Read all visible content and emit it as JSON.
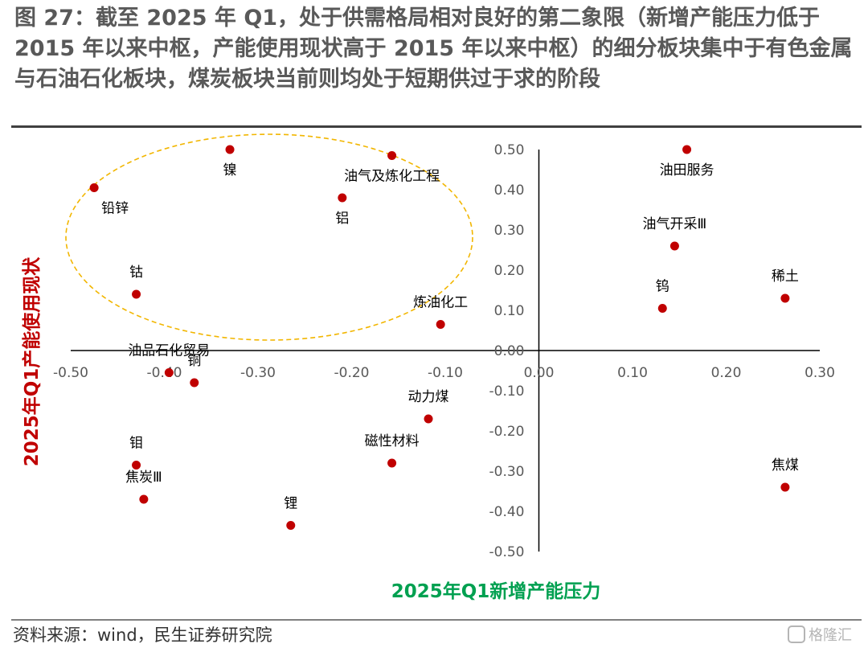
{
  "title": "图 27：截至 2025 年 Q1，处于供需格局相对良好的第二象限（新增产能压力低于 2015 年以来中枢，产能使用现状高于 2015 年以来中枢）的细分板块集中于有色金属与石油石化板块，煤炭板块当前则均处于短期供过于求的阶段",
  "source": "资料来源：wind，民生证券研究院",
  "watermark": "格隆汇",
  "colors": {
    "point": "#c00000",
    "xlabel": "#00a050",
    "ylabel": "#c00000",
    "ellipse": "#f2b600",
    "axis": "#000000",
    "tick": "#595959"
  },
  "chart_data": {
    "type": "scatter",
    "xlabel": "2025年Q1新增产能压力",
    "ylabel": "2025年Q1产能使用现状",
    "xlim": [
      -0.5,
      0.3
    ],
    "ylim": [
      -0.5,
      0.5
    ],
    "x_ticks": [
      "-0.50",
      "-0.40",
      "-0.30",
      "-0.20",
      "-0.10",
      "0.00",
      "0.10",
      "0.20",
      "0.30"
    ],
    "y_ticks": [
      "0.50",
      "0.40",
      "0.30",
      "0.20",
      "0.10",
      "0.00",
      "-0.10",
      "-0.20",
      "-0.30",
      "-0.40",
      "-0.50"
    ],
    "grid": false,
    "highlight": "ellipse-dashed around second quadrant",
    "points": [
      {
        "label": "镍",
        "x": -0.33,
        "y": 0.5
      },
      {
        "label": "油气及炼化工程",
        "x": -0.157,
        "y": 0.485
      },
      {
        "label": "铅锌",
        "x": -0.475,
        "y": 0.405
      },
      {
        "label": "铝",
        "x": -0.21,
        "y": 0.38
      },
      {
        "label": "钴",
        "x": -0.43,
        "y": 0.14
      },
      {
        "label": "炼油化工",
        "x": -0.105,
        "y": 0.065
      },
      {
        "label": "油田服务",
        "x": 0.158,
        "y": 0.5
      },
      {
        "label": "油气开采Ⅲ",
        "x": 0.145,
        "y": 0.26
      },
      {
        "label": "稀土",
        "x": 0.263,
        "y": 0.13
      },
      {
        "label": "钨",
        "x": 0.132,
        "y": 0.105
      },
      {
        "label": "油品石化贸易",
        "x": -0.395,
        "y": -0.055
      },
      {
        "label": "铜",
        "x": -0.368,
        "y": -0.08
      },
      {
        "label": "动力煤",
        "x": -0.118,
        "y": -0.17
      },
      {
        "label": "磁性材料",
        "x": -0.157,
        "y": -0.28
      },
      {
        "label": "钼",
        "x": -0.43,
        "y": -0.285
      },
      {
        "label": "焦炭Ⅲ",
        "x": -0.422,
        "y": -0.37
      },
      {
        "label": "焦煤",
        "x": 0.263,
        "y": -0.34
      },
      {
        "label": "锂",
        "x": -0.265,
        "y": -0.435
      }
    ]
  }
}
